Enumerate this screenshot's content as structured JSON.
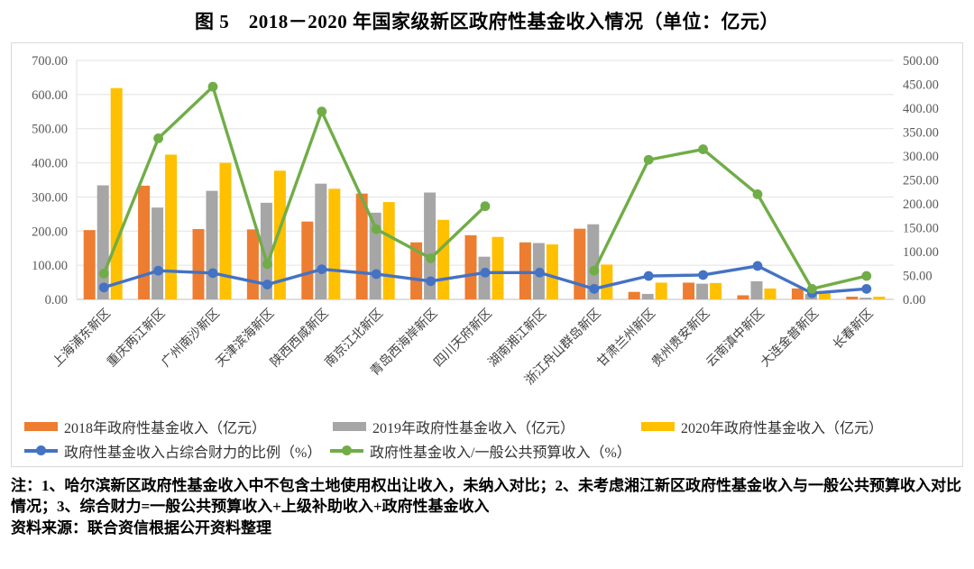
{
  "title": "图 5　2018－2020 年国家级新区政府性基金收入情况（单位：亿元）",
  "notes": {
    "note": "注：1、哈尔滨新区政府性基金收入中不包含土地使用权出让收入，未纳入对比；2、未考虑湘江新区政府性基金收入与一般公共预算收入对比情况；3、综合财力=一般公共预算收入+上级补助收入+政府性基金收入",
    "source": "资料来源：联合资信根据公开资料整理"
  },
  "colors": {
    "bar_2018": "#ED7D31",
    "bar_2019": "#A6A6A6",
    "bar_2020": "#FFC000",
    "line_blue": "#4472C4",
    "line_green": "#70AD47",
    "gridline": "#E2E2E2",
    "axis_line": "#BFBFBF",
    "axis_text": "#595959"
  },
  "chart_data": {
    "type": "bar",
    "subtype": "bar-line combo, dual axis",
    "categories": [
      "上海浦东新区",
      "重庆两江新区",
      "广州南沙新区",
      "天津滨海新区",
      "陕西西咸新区",
      "南京江北新区",
      "青岛西海岸新区",
      "四川天府新区",
      "湖南湘江新区",
      "浙江舟山群岛新区",
      "甘肃兰州新区",
      "贵州贵安新区",
      "云南滇中新区",
      "大连金普新区",
      "长春新区"
    ],
    "bar_series": [
      {
        "name": "2018年政府性基金收入（亿元）",
        "axis": "left",
        "color": "#ED7D31",
        "values": [
          203,
          333,
          206,
          205,
          228,
          310,
          167,
          188,
          167,
          207,
          22,
          49,
          12,
          32,
          8
        ]
      },
      {
        "name": "2019年政府性基金收入（亿元）",
        "axis": "left",
        "color": "#A6A6A6",
        "values": [
          334,
          269,
          318,
          283,
          339,
          254,
          313,
          125,
          165,
          220,
          16,
          46,
          53,
          16,
          5
        ]
      },
      {
        "name": "2020年政府性基金收入（亿元）",
        "axis": "left",
        "color": "#FFC000",
        "values": [
          619,
          424,
          400,
          377,
          324,
          285,
          233,
          183,
          161,
          102,
          49,
          48,
          32,
          25,
          8
        ]
      }
    ],
    "line_series": [
      {
        "name": "政府性基金收入占综合财力的比例（%）",
        "axis": "right",
        "color": "#4472C4",
        "values": [
          25,
          60,
          55,
          31,
          63,
          53,
          38,
          56,
          56,
          22,
          49,
          51,
          70,
          13,
          22
        ]
      },
      {
        "name": "政府性基金收入/一般公共预算收入（%）",
        "axis": "right",
        "color": "#70AD47",
        "values": [
          54,
          337,
          445,
          74,
          393,
          147,
          86,
          195,
          null,
          60,
          292,
          314,
          220,
          22,
          49
        ]
      }
    ],
    "left_axis": {
      "min": 0,
      "max": 700,
      "step": 100,
      "tick_format": "0.00"
    },
    "right_axis": {
      "min": 0,
      "max": 500,
      "step": 50,
      "tick_format": "0.00"
    },
    "grid": true,
    "legend_position": "bottom",
    "x_label_rotation": 45
  }
}
